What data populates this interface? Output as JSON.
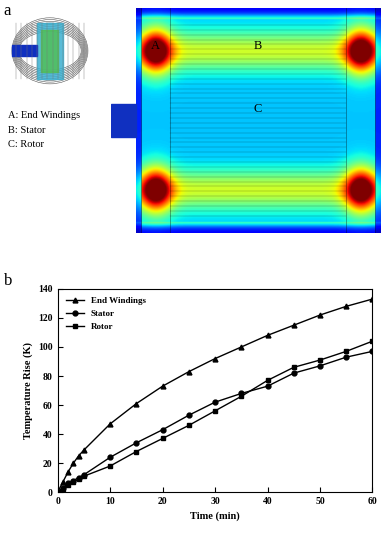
{
  "diagram": {
    "panel_label": "a",
    "region_labels": [
      "A",
      "B",
      "C"
    ],
    "legend_texts": [
      "A: End Windings",
      "B: Stator",
      "C: Rotor"
    ]
  },
  "chart_data": {
    "type": "line",
    "panel_label": "b",
    "x_label": "Time (min)",
    "y_label": "Temperature Rise (K)",
    "x": [
      0,
      1,
      2,
      3,
      4,
      5,
      10,
      15,
      20,
      25,
      30,
      35,
      40,
      45,
      50,
      55,
      60
    ],
    "series": [
      {
        "name": "End Windings",
        "color": "#000000",
        "marker": "triangle",
        "line_style": "solid",
        "values": [
          0,
          7,
          14,
          20,
          25,
          29,
          47,
          61,
          73,
          83,
          92,
          100,
          108,
          115,
          122,
          128,
          133
        ]
      },
      {
        "name": "Stator",
        "color": "#000000",
        "marker": "circle",
        "line_style": "solid",
        "values": [
          0,
          3,
          6,
          8,
          10,
          12,
          24,
          34,
          43,
          53,
          62,
          68,
          73,
          82,
          87,
          93,
          97
        ]
      },
      {
        "name": "Rotor",
        "color": "#000000",
        "marker": "square",
        "line_style": "solid",
        "values": [
          0,
          2,
          5,
          7,
          9,
          11,
          18,
          28,
          37,
          46,
          56,
          66,
          77,
          86,
          91,
          97,
          104
        ]
      }
    ],
    "xlim": [
      0,
      60
    ],
    "ylim": [
      0,
      140
    ],
    "xticks": [
      0,
      10,
      20,
      30,
      40,
      50,
      60
    ],
    "yticks": [
      0,
      20,
      40,
      60,
      80,
      100,
      120,
      140
    ],
    "legend": "upper left",
    "grid": false
  }
}
